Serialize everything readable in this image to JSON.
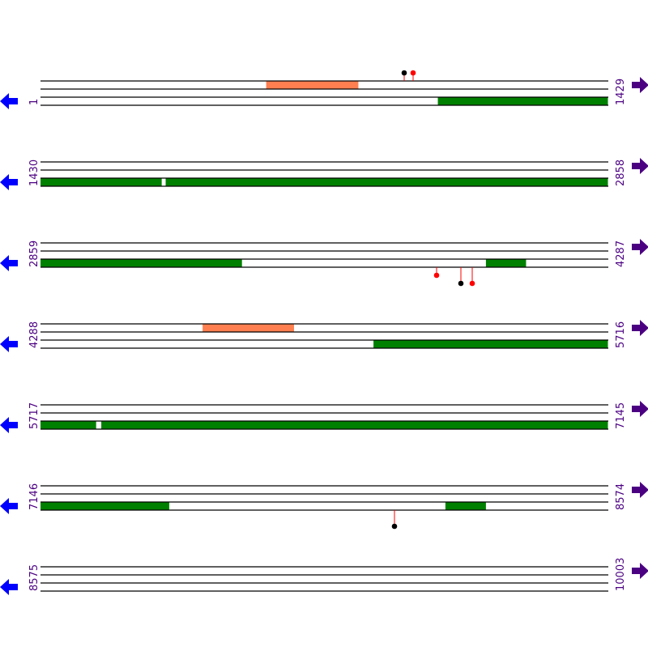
{
  "colors": {
    "line": "#000000",
    "orange": "#ff7f50",
    "green": "#008000",
    "pin_red": "#ff0000",
    "pin_black": "#000000",
    "label": "#4b0082",
    "left_arrow": "#0000ff",
    "right_arrow": "#4b0082"
  },
  "bases_per_row": 1429,
  "rows": [
    {
      "start": "1",
      "end": "1429",
      "start_base": 1,
      "features": [
        {
          "track": "top",
          "color": "orange",
          "from": 569,
          "to": 801
        },
        {
          "track": "bottom",
          "color": "green",
          "from": 1001,
          "to": 1429
        }
      ],
      "pins": [
        {
          "base": 916,
          "color": "pin_black",
          "side": "up",
          "tier": 1
        },
        {
          "base": 938,
          "color": "pin_red",
          "side": "up",
          "tier": 1
        }
      ]
    },
    {
      "start": "1430",
      "end": "2858",
      "start_base": 1430,
      "features": [
        {
          "track": "bottom",
          "color": "green",
          "from": 1430,
          "to": 1735
        },
        {
          "track": "bottom",
          "color": "green",
          "from": 1745,
          "to": 2858
        }
      ],
      "pins": []
    },
    {
      "start": "2859",
      "end": "4287",
      "start_base": 2859,
      "features": [
        {
          "track": "bottom",
          "color": "green",
          "from": 2859,
          "to": 3366
        },
        {
          "track": "bottom",
          "color": "green",
          "from": 3980,
          "to": 4081
        }
      ],
      "pins": [
        {
          "base": 3856,
          "color": "pin_red",
          "side": "down",
          "tier": 1
        },
        {
          "base": 3917,
          "color": "pin_black",
          "side": "down",
          "tier": 2
        },
        {
          "base": 3945,
          "color": "pin_red",
          "side": "down",
          "tier": 2
        }
      ]
    },
    {
      "start": "4288",
      "end": "5716",
      "start_base": 4288,
      "features": [
        {
          "track": "top",
          "color": "orange",
          "from": 4696,
          "to": 4926
        },
        {
          "track": "bottom",
          "color": "green",
          "from": 5126,
          "to": 5716
        }
      ],
      "pins": []
    },
    {
      "start": "5717",
      "end": "7145",
      "start_base": 5717,
      "features": [
        {
          "track": "bottom",
          "color": "green",
          "from": 5717,
          "to": 5857
        },
        {
          "track": "bottom",
          "color": "green",
          "from": 5870,
          "to": 7145
        }
      ],
      "pins": []
    },
    {
      "start": "7146",
      "end": "8574",
      "start_base": 7146,
      "features": [
        {
          "track": "bottom",
          "color": "green",
          "from": 7146,
          "to": 7470
        },
        {
          "track": "bottom",
          "color": "green",
          "from": 8165,
          "to": 8267
        }
      ],
      "pins": [
        {
          "base": 8037,
          "color": "pin_black",
          "side": "down",
          "tier": 2
        }
      ]
    },
    {
      "start": "8575",
      "end": "10003",
      "start_base": 8575,
      "features": [],
      "pins": []
    }
  ]
}
